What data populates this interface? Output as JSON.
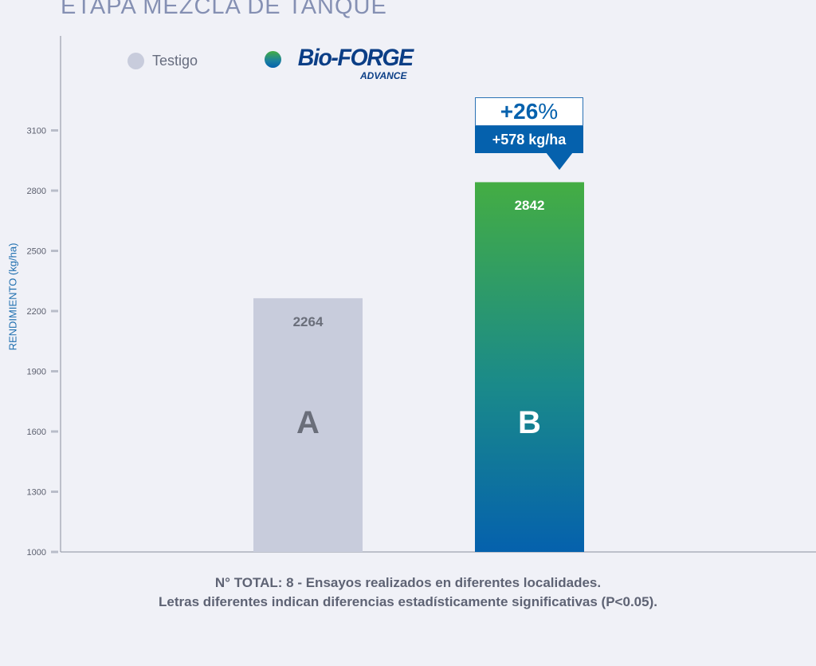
{
  "title": "ETAPA MEZCLA DE TANQUE",
  "legend": {
    "testigo": "Testigo",
    "brand_main": "Bio-FORGE",
    "brand_sub": "ADVANCE"
  },
  "colors": {
    "testigo": "#c8ccdc",
    "bio_top": "#44ad43",
    "bio_bottom": "#0561ad",
    "axis_label": "#1f6fb0",
    "callout": "#0561ad"
  },
  "callout": {
    "percent": "+26",
    "percent_sign": "%",
    "kg": "+578 kg/ha"
  },
  "footnote": {
    "line1": "N° TOTAL: 8 - Ensayos realizados en diferentes localidades.",
    "line2": "Letras diferentes indican diferencias estadísticamente significativas (P<0.05)."
  },
  "chart_data": {
    "type": "bar",
    "title": "ETAPA MEZCLA DE TANQUE",
    "ylabel": "RENDIMIENTO (kg/ha)",
    "xlabel": "",
    "categories": [
      "Testigo",
      "Bio-FORGE ADVANCE"
    ],
    "values": [
      2264,
      2842
    ],
    "value_labels": [
      "2264",
      "2842"
    ],
    "letters": [
      "A",
      "B"
    ],
    "yticks": [
      1000,
      1300,
      1600,
      1900,
      2200,
      2500,
      2800,
      3100
    ],
    "ylim": [
      1000,
      3600
    ],
    "grid": false,
    "legend": "top-left"
  }
}
